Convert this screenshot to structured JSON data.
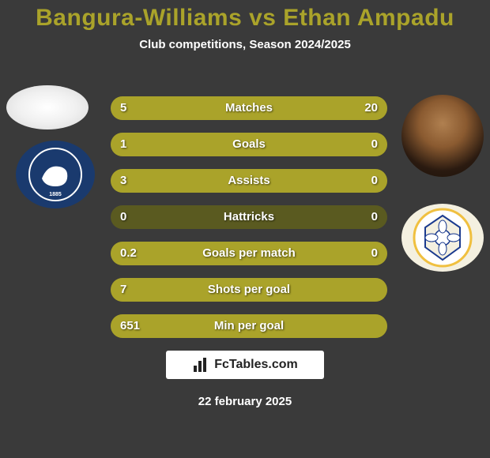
{
  "title": {
    "text": "Bangura-Williams vs Ethan Ampadu",
    "color": "#aaa32a",
    "fontsize": 30
  },
  "subtitle": {
    "text": "Club competitions, Season 2024/2025",
    "color": "#ffffff",
    "fontsize": 15
  },
  "colors": {
    "bar_bg": "#5a5a20",
    "bar_fill": "#aaa32a",
    "value_text": "#ffffff",
    "label_text": "#ffffff",
    "value_fontsize": 15,
    "label_fontsize": 15
  },
  "stats": [
    {
      "label": "Matches",
      "left_display": "5",
      "right_display": "20",
      "left_pct": 20,
      "right_pct": 80
    },
    {
      "label": "Goals",
      "left_display": "1",
      "right_display": "0",
      "left_pct": 100,
      "right_pct": 0
    },
    {
      "label": "Assists",
      "left_display": "3",
      "right_display": "0",
      "left_pct": 100,
      "right_pct": 0
    },
    {
      "label": "Hattricks",
      "left_display": "0",
      "right_display": "0",
      "left_pct": 0,
      "right_pct": 0
    },
    {
      "label": "Goals per match",
      "left_display": "0.2",
      "right_display": "0",
      "left_pct": 100,
      "right_pct": 0
    },
    {
      "label": "Shots per goal",
      "left_display": "7",
      "right_display": "",
      "left_pct": 100,
      "right_pct": 0
    },
    {
      "label": "Min per goal",
      "left_display": "651",
      "right_display": "",
      "left_pct": 100,
      "right_pct": 0
    }
  ],
  "players": {
    "left": {
      "name": "Bangura-Williams",
      "club": "Millwall"
    },
    "right": {
      "name": "Ethan Ampadu",
      "club": "Leeds United"
    }
  },
  "clubs": {
    "left": {
      "primary": "#1a3a6e",
      "accent": "#ffffff"
    },
    "right": {
      "primary": "#f4f0e0",
      "accent": "#1a3a8e"
    }
  },
  "footer": {
    "brand": "FcTables.com",
    "brand_color": "#222222",
    "date": "22 february 2025",
    "date_color": "#ffffff",
    "date_fontsize": 15
  }
}
